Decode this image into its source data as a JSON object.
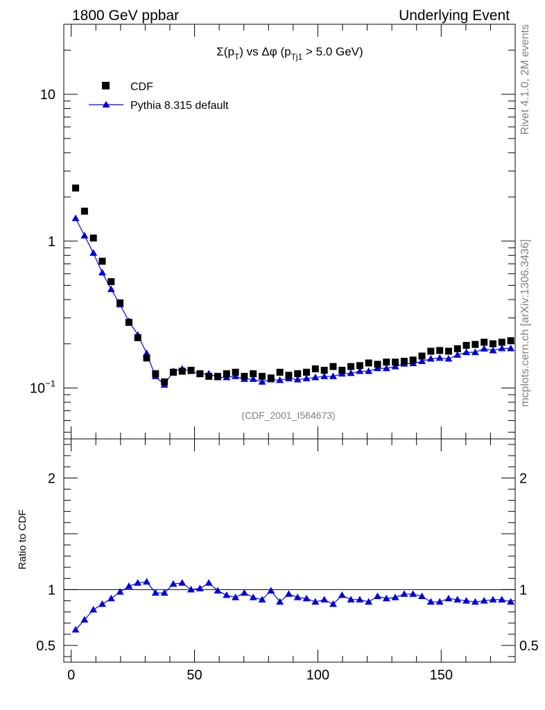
{
  "header": {
    "left": "1800 GeV ppbar",
    "right": "Underlying Event"
  },
  "side": {
    "rivet": "Rivet 4.1.0,  2M events",
    "mcplots": "mcplots.cern.ch [arXiv:1306.3436]"
  },
  "chart_data": {
    "type": "scatter",
    "title": "Σ(p_T) vs Δφ (p_Tj1 > 5.0 GeV)",
    "title_parts": {
      "pre": "Σ(p",
      "sub1": "T",
      "mid": ") vs Δφ (p",
      "sub2": "Tj1",
      "post": " > 5.0 GeV)"
    },
    "analysis_id": "(CDF_2001_I564673)",
    "xlabel": "",
    "xlim": [
      -3,
      180
    ],
    "x_ticks": [
      "0",
      "50",
      "100",
      "150"
    ],
    "main": {
      "yscale": "log",
      "ylim": [
        0.045,
        30
      ],
      "y_ticks": [
        {
          "value": 0.1,
          "base": "10",
          "exp": "−1"
        },
        {
          "value": 1,
          "base": "1",
          "exp": ""
        },
        {
          "value": 10,
          "base": "10",
          "exp": ""
        }
      ]
    },
    "ratio": {
      "ylabel": "Ratio to CDF",
      "ylim": [
        0.35,
        2.35
      ],
      "y_ticks": [
        "0.5",
        "1",
        "2"
      ],
      "reference": 1
    },
    "x": [
      1.8,
      5.4,
      9.0,
      12.6,
      16.2,
      19.8,
      23.4,
      27.0,
      30.6,
      34.2,
      37.8,
      41.4,
      45.0,
      48.6,
      52.2,
      55.8,
      59.4,
      63.0,
      66.6,
      70.2,
      73.8,
      77.4,
      81.0,
      84.6,
      88.2,
      91.8,
      95.4,
      99.0,
      102.6,
      106.2,
      109.8,
      113.4,
      117.0,
      120.6,
      124.2,
      127.8,
      131.4,
      135.0,
      138.6,
      142.2,
      145.8,
      149.4,
      153.0,
      156.6,
      160.2,
      163.8,
      167.4,
      171.0,
      174.6,
      178.2
    ],
    "series": [
      {
        "name": "CDF",
        "marker": "square",
        "color": "#000000",
        "values": [
          2.3,
          1.6,
          1.05,
          0.73,
          0.53,
          0.38,
          0.28,
          0.22,
          0.16,
          0.125,
          0.11,
          0.128,
          0.13,
          0.132,
          0.125,
          0.12,
          0.12,
          0.125,
          0.128,
          0.12,
          0.125,
          0.12,
          0.117,
          0.128,
          0.122,
          0.125,
          0.128,
          0.135,
          0.132,
          0.14,
          0.132,
          0.14,
          0.142,
          0.148,
          0.145,
          0.15,
          0.15,
          0.152,
          0.155,
          0.165,
          0.178,
          0.18,
          0.178,
          0.185,
          0.195,
          0.198,
          0.205,
          0.2,
          0.205,
          0.21
        ]
      },
      {
        "name": "Pythia 8.315 default",
        "marker": "triangle",
        "color": "#0000dd",
        "values": [
          1.43,
          1.09,
          0.83,
          0.61,
          0.47,
          0.37,
          0.285,
          0.23,
          0.172,
          0.12,
          0.105,
          0.13,
          0.135,
          0.13,
          0.124,
          0.125,
          0.118,
          0.118,
          0.12,
          0.115,
          0.115,
          0.11,
          0.114,
          0.113,
          0.116,
          0.114,
          0.116,
          0.118,
          0.12,
          0.12,
          0.125,
          0.126,
          0.13,
          0.13,
          0.136,
          0.136,
          0.14,
          0.146,
          0.147,
          0.152,
          0.158,
          0.16,
          0.158,
          0.168,
          0.175,
          0.175,
          0.185,
          0.18,
          0.186,
          0.186
        ]
      }
    ],
    "ratio_values": [
      0.64,
      0.73,
      0.82,
      0.87,
      0.92,
      0.98,
      1.03,
      1.06,
      1.07,
      0.97,
      0.97,
      1.05,
      1.06,
      1.0,
      1.01,
      1.06,
      0.99,
      0.95,
      0.93,
      0.97,
      0.93,
      0.91,
      0.99,
      0.89,
      0.96,
      0.93,
      0.92,
      0.89,
      0.91,
      0.87,
      0.95,
      0.91,
      0.91,
      0.89,
      0.94,
      0.92,
      0.93,
      0.96,
      0.96,
      0.94,
      0.89,
      0.89,
      0.92,
      0.91,
      0.9,
      0.89,
      0.9,
      0.91,
      0.91,
      0.89
    ]
  }
}
